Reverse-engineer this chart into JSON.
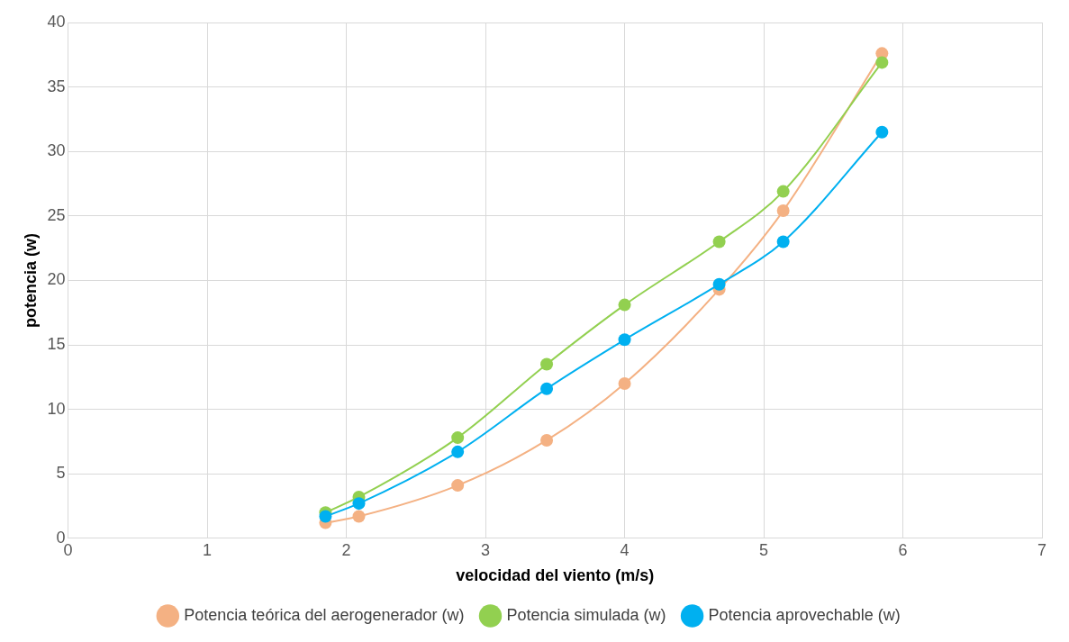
{
  "chart_data": {
    "type": "line",
    "xlabel": "velocidad del viento (m/s)",
    "ylabel": "potencia (w)",
    "x": [
      1.85,
      2.09,
      2.8,
      3.44,
      4.0,
      4.68,
      5.14,
      5.85
    ],
    "series": [
      {
        "name": "Potencia teórica del aerogenerador (w)",
        "color": "#f4b183",
        "values": [
          1.2,
          1.7,
          4.1,
          7.6,
          12.0,
          19.3,
          25.4,
          37.6
        ]
      },
      {
        "name": "Potencia simulada (w)",
        "color": "#92d050",
        "values": [
          2.0,
          3.2,
          7.8,
          13.5,
          18.1,
          23.0,
          26.9,
          36.9
        ]
      },
      {
        "name": "Potencia aprovechable (w)",
        "color": "#00b0f0",
        "values": [
          1.7,
          2.7,
          6.7,
          11.6,
          15.4,
          19.7,
          23.0,
          31.5
        ]
      }
    ],
    "xlim": [
      0,
      7
    ],
    "xticks": [
      0,
      1,
      2,
      3,
      4,
      5,
      6,
      7
    ],
    "ylim": [
      0,
      40
    ],
    "yticks": [
      0,
      5,
      10,
      15,
      20,
      25,
      30,
      35,
      40
    ],
    "grid": true,
    "legend": "bottom",
    "marker": "circle",
    "line_style": "solid"
  }
}
